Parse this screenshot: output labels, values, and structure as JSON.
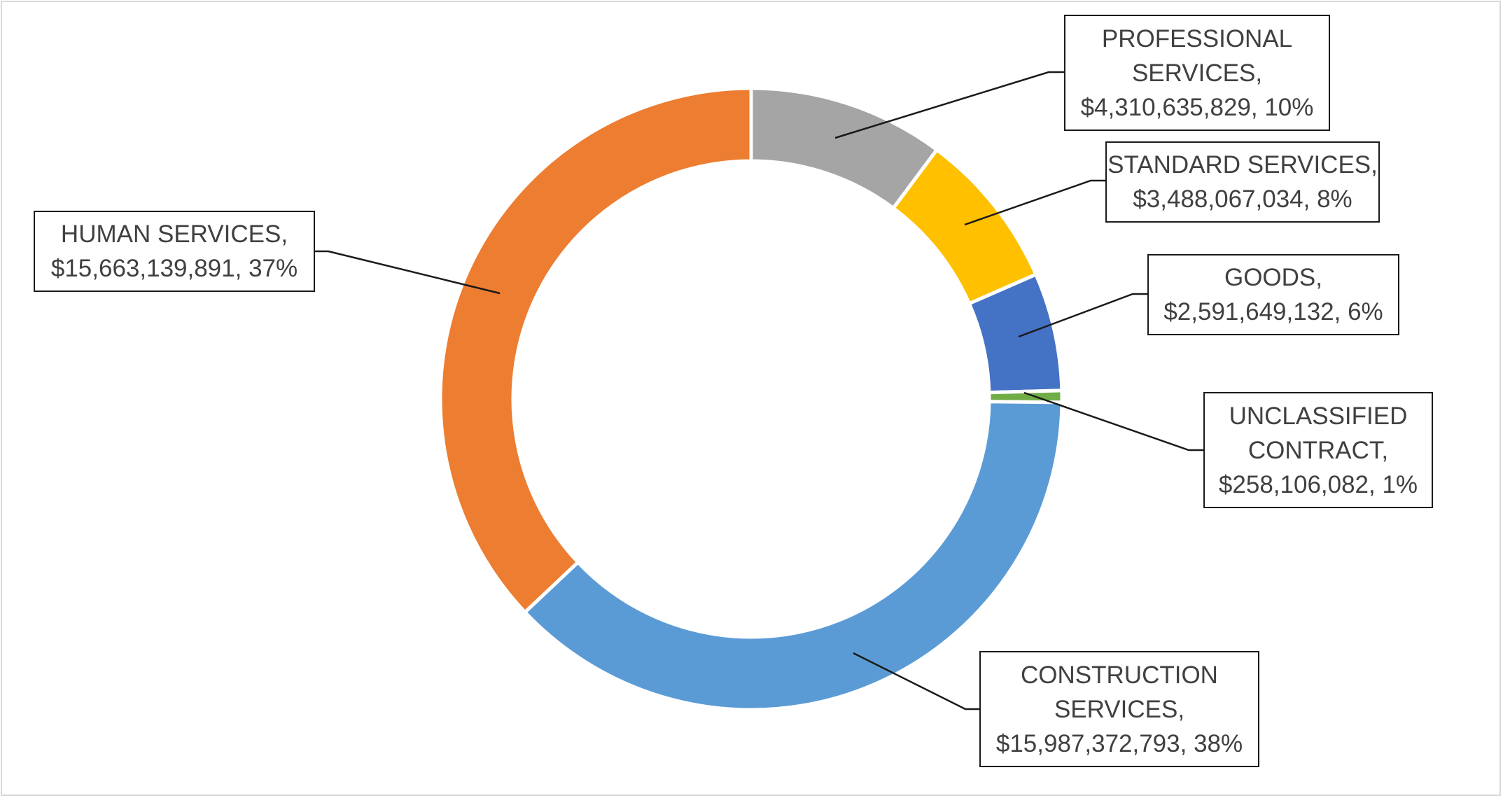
{
  "chart_data": {
    "type": "pie",
    "style": "donut",
    "title": "",
    "slices": [
      {
        "key": "prof",
        "lines": [
          "PROFESSIONAL",
          "SERVICES,",
          "$4,310,635,829, 10%"
        ],
        "category": "PROFESSIONAL SERVICES",
        "value": 4310635829,
        "percent": 10,
        "color": "#A5A5A5"
      },
      {
        "key": "std",
        "lines": [
          "STANDARD SERVICES,",
          "$3,488,067,034, 8%"
        ],
        "category": "STANDARD SERVICES",
        "value": 3488067034,
        "percent": 8,
        "color": "#FFC000"
      },
      {
        "key": "goods",
        "lines": [
          "GOODS,",
          "$2,591,649,132, 6%"
        ],
        "category": "GOODS",
        "value": 2591649132,
        "percent": 6,
        "color": "#4472C4"
      },
      {
        "key": "uncl",
        "lines": [
          "UNCLASSIFIED",
          "CONTRACT,",
          "$258,106,082, 1%"
        ],
        "category": "UNCLASSIFIED CONTRACT",
        "value": 258106082,
        "percent": 1,
        "color": "#70AD47"
      },
      {
        "key": "constr",
        "lines": [
          "CONSTRUCTION",
          "SERVICES,",
          "$15,987,372,793, 38%"
        ],
        "category": "CONSTRUCTION SERVICES",
        "value": 15987372793,
        "percent": 38,
        "color": "#5B9BD5"
      },
      {
        "key": "human",
        "lines": [
          "HUMAN SERVICES,",
          "$15,663,139,891, 37%"
        ],
        "category": "HUMAN SERVICES",
        "value": 15663139891,
        "percent": 37,
        "color": "#ED7D31"
      }
    ]
  }
}
